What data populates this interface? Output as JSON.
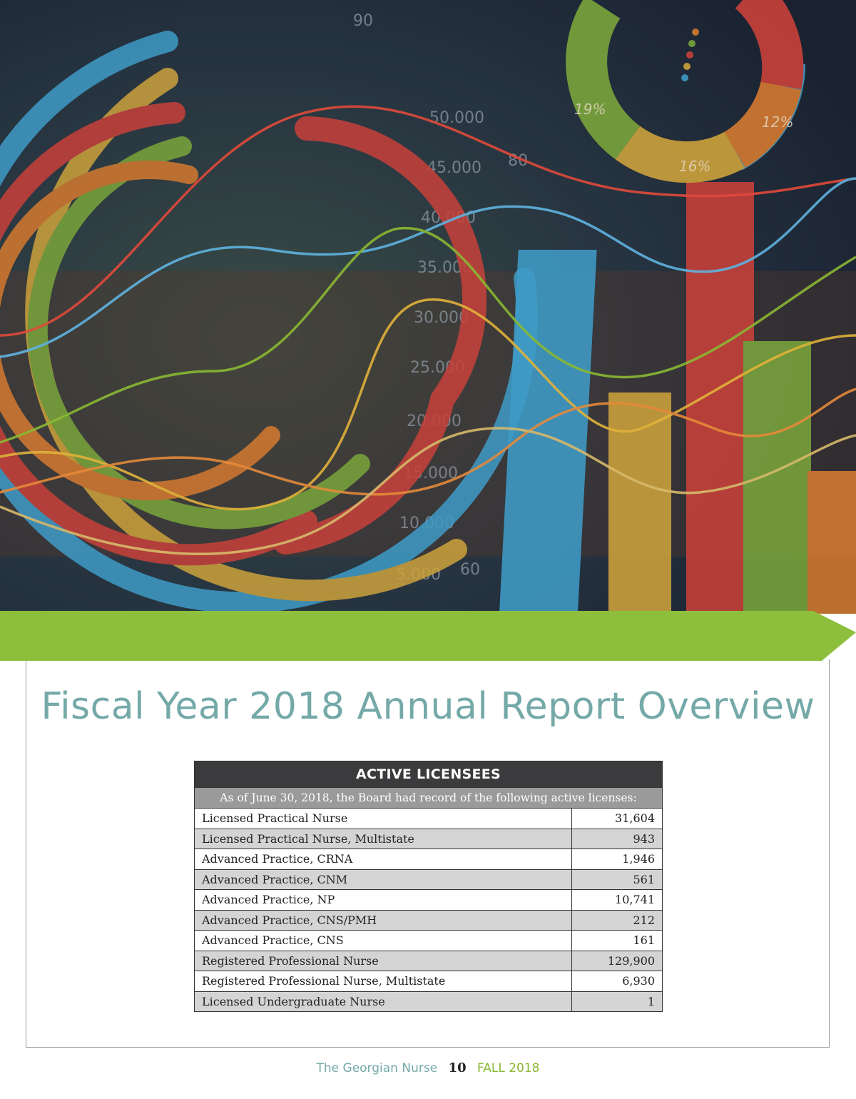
{
  "hero": {
    "axis_numbers": [
      "90",
      "80",
      "60",
      "50.000",
      "45.000",
      "40.000",
      "35.000",
      "30.000",
      "25.000",
      "20.000",
      "15.000",
      "10.000",
      "5.000"
    ],
    "donut_labels": [
      "19%",
      "12%",
      "16%"
    ],
    "colors": {
      "background": "#1f2a38",
      "blue": "#3f9bc7",
      "red": "#c8413a",
      "gold": "#cda23c",
      "green": "#7aa53c",
      "orange": "#d47a30"
    }
  },
  "ribbon": {
    "color": "#8ebf3c"
  },
  "page": {
    "title": "Fiscal Year 2018 Annual Report Overview"
  },
  "table": {
    "header": "ACTIVE LICENSEES",
    "subheader": "As of June 30, 2018, the Board had record of the following active licenses:",
    "rows": [
      {
        "label": "Licensed Practical Nurse",
        "value": "31,604"
      },
      {
        "label": "Licensed Practical Nurse, Multistate",
        "value": "943"
      },
      {
        "label": "Advanced Practice, CRNA",
        "value": "1,946"
      },
      {
        "label": "Advanced Practice, CNM",
        "value": "561"
      },
      {
        "label": "Advanced Practice, NP",
        "value": "10,741"
      },
      {
        "label": "Advanced Practice, CNS/PMH",
        "value": "212"
      },
      {
        "label": "Advanced Practice, CNS",
        "value": "161"
      },
      {
        "label": "Registered Professional Nurse",
        "value": "129,900"
      },
      {
        "label": "Registered Professional Nurse, Multistate",
        "value": "6,930"
      },
      {
        "label": "Licensed Undergraduate Nurse",
        "value": "1"
      }
    ]
  },
  "footer": {
    "publication": "The Georgian Nurse",
    "page_number": "10",
    "issue": "FALL 2018"
  }
}
